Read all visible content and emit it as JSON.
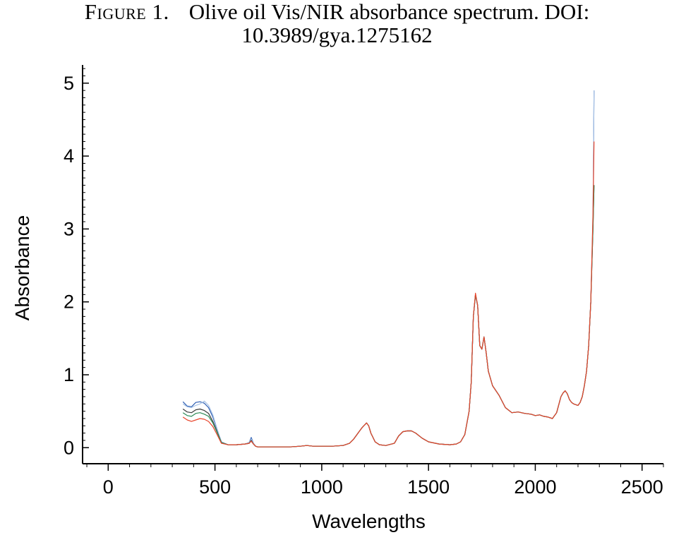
{
  "caption": {
    "label": "Figure 1.",
    "line1": "Olive oil Vis/NIR absorbance spectrum. DOI:",
    "line2": "10.3989/gya.1275162"
  },
  "chart_data": {
    "type": "line",
    "title": "",
    "xlabel": "Wavelengths",
    "ylabel": "Absorbance",
    "xlim": [
      -120,
      2600
    ],
    "ylim": [
      -0.22,
      5.25
    ],
    "xticks": [
      0,
      500,
      1000,
      1500,
      2000,
      2500
    ],
    "yticks": [
      0,
      1,
      2,
      3,
      4,
      5
    ],
    "grid": false,
    "legend": "none",
    "series": [
      {
        "color": "#2f5fb3",
        "x": [
          350,
          370,
          390,
          410,
          430,
          450,
          470,
          490,
          510,
          530,
          560,
          600,
          640,
          660,
          670,
          680,
          690,
          700,
          750,
          800,
          850,
          900,
          930,
          960,
          1000,
          1050,
          1100,
          1130,
          1150,
          1170,
          1190,
          1210,
          1220,
          1230,
          1250,
          1270,
          1300,
          1340,
          1360,
          1380,
          1400,
          1420,
          1440,
          1470,
          1500,
          1550,
          1600,
          1630,
          1650,
          1670,
          1690,
          1700,
          1710,
          1720,
          1730,
          1740,
          1750,
          1760,
          1770,
          1780,
          1800,
          1830,
          1860,
          1890,
          1920,
          1950,
          1980,
          2000,
          2020,
          2040,
          2060,
          2080,
          2100,
          2120,
          2130,
          2140,
          2150,
          2160,
          2170,
          2180,
          2200,
          2210,
          2220,
          2230,
          2240,
          2250,
          2260,
          2270,
          2275
        ],
        "y": [
          0.63,
          0.57,
          0.56,
          0.62,
          0.63,
          0.61,
          0.55,
          0.42,
          0.25,
          0.08,
          0.04,
          0.04,
          0.05,
          0.07,
          0.14,
          0.06,
          0.02,
          0.01,
          0.01,
          0.01,
          0.01,
          0.02,
          0.03,
          0.02,
          0.02,
          0.02,
          0.03,
          0.06,
          0.12,
          0.2,
          0.28,
          0.34,
          0.3,
          0.2,
          0.08,
          0.04,
          0.03,
          0.06,
          0.16,
          0.22,
          0.23,
          0.23,
          0.2,
          0.13,
          0.08,
          0.05,
          0.04,
          0.05,
          0.08,
          0.18,
          0.5,
          0.9,
          1.8,
          2.1,
          1.95,
          1.4,
          1.35,
          1.52,
          1.3,
          1.05,
          0.85,
          0.72,
          0.55,
          0.48,
          0.49,
          0.47,
          0.46,
          0.44,
          0.45,
          0.43,
          0.42,
          0.4,
          0.48,
          0.7,
          0.75,
          0.78,
          0.74,
          0.66,
          0.62,
          0.6,
          0.58,
          0.62,
          0.7,
          0.85,
          1.05,
          1.4,
          2.0,
          3.1,
          4.9
        ]
      },
      {
        "color": "#a9c4e6",
        "x": [
          350,
          370,
          390,
          410,
          430,
          450,
          470,
          490,
          510,
          530,
          560,
          600,
          640,
          660,
          670,
          680,
          690,
          700,
          750,
          800,
          850,
          900,
          930,
          960,
          1000,
          1050,
          1100,
          1130,
          1150,
          1170,
          1190,
          1210,
          1220,
          1230,
          1250,
          1270,
          1300,
          1340,
          1360,
          1380,
          1400,
          1420,
          1440,
          1470,
          1500,
          1550,
          1600,
          1630,
          1650,
          1670,
          1690,
          1700,
          1710,
          1720,
          1730,
          1740,
          1750,
          1760,
          1770,
          1780,
          1800,
          1830,
          1860,
          1890,
          1920,
          1950,
          1980,
          2000,
          2020,
          2040,
          2060,
          2080,
          2100,
          2120,
          2130,
          2140,
          2150,
          2160,
          2170,
          2180,
          2200,
          2210,
          2220,
          2230,
          2240,
          2250,
          2260,
          2270,
          2275
        ],
        "y": [
          0.6,
          0.56,
          0.55,
          0.58,
          0.6,
          0.64,
          0.58,
          0.45,
          0.26,
          0.08,
          0.04,
          0.04,
          0.05,
          0.07,
          0.12,
          0.06,
          0.02,
          0.01,
          0.01,
          0.01,
          0.01,
          0.02,
          0.03,
          0.02,
          0.02,
          0.02,
          0.03,
          0.06,
          0.12,
          0.2,
          0.28,
          0.34,
          0.3,
          0.2,
          0.08,
          0.04,
          0.03,
          0.06,
          0.16,
          0.22,
          0.23,
          0.23,
          0.2,
          0.13,
          0.08,
          0.05,
          0.04,
          0.05,
          0.08,
          0.18,
          0.5,
          0.9,
          1.8,
          2.1,
          1.95,
          1.4,
          1.35,
          1.52,
          1.3,
          1.05,
          0.85,
          0.72,
          0.55,
          0.48,
          0.49,
          0.47,
          0.46,
          0.44,
          0.45,
          0.43,
          0.42,
          0.4,
          0.48,
          0.7,
          0.75,
          0.78,
          0.74,
          0.66,
          0.62,
          0.6,
          0.58,
          0.62,
          0.7,
          0.85,
          1.05,
          1.4,
          2.0,
          3.2,
          4.9
        ]
      },
      {
        "color": "#3b3b3b",
        "x": [
          350,
          370,
          390,
          410,
          430,
          450,
          470,
          490,
          510,
          530,
          560,
          600,
          640,
          660,
          670,
          680,
          690,
          700,
          750,
          800,
          850,
          900,
          930,
          960,
          1000,
          1050,
          1100,
          1130,
          1150,
          1170,
          1190,
          1210,
          1220,
          1230,
          1250,
          1270,
          1300,
          1340,
          1360,
          1380,
          1400,
          1420,
          1440,
          1470,
          1500,
          1550,
          1600,
          1630,
          1650,
          1670,
          1690,
          1700,
          1710,
          1720,
          1730,
          1740,
          1750,
          1760,
          1770,
          1780,
          1800,
          1830,
          1860,
          1890,
          1920,
          1950,
          1980,
          2000,
          2020,
          2040,
          2060,
          2080,
          2100,
          2120,
          2130,
          2140,
          2150,
          2160,
          2170,
          2180,
          2200,
          2210,
          2220,
          2230,
          2240,
          2250,
          2260,
          2270,
          2275
        ],
        "y": [
          0.53,
          0.49,
          0.48,
          0.52,
          0.53,
          0.51,
          0.47,
          0.36,
          0.22,
          0.07,
          0.04,
          0.04,
          0.05,
          0.06,
          0.1,
          0.05,
          0.02,
          0.01,
          0.01,
          0.01,
          0.01,
          0.02,
          0.03,
          0.02,
          0.02,
          0.02,
          0.03,
          0.06,
          0.12,
          0.2,
          0.28,
          0.34,
          0.3,
          0.2,
          0.08,
          0.04,
          0.03,
          0.06,
          0.16,
          0.22,
          0.23,
          0.23,
          0.2,
          0.13,
          0.08,
          0.05,
          0.04,
          0.05,
          0.08,
          0.18,
          0.5,
          0.9,
          1.8,
          2.1,
          1.95,
          1.4,
          1.35,
          1.52,
          1.3,
          1.05,
          0.85,
          0.72,
          0.55,
          0.48,
          0.49,
          0.47,
          0.46,
          0.44,
          0.45,
          0.43,
          0.42,
          0.4,
          0.48,
          0.7,
          0.75,
          0.78,
          0.74,
          0.66,
          0.62,
          0.6,
          0.58,
          0.62,
          0.7,
          0.85,
          1.05,
          1.4,
          2.0,
          3.0,
          3.6
        ]
      },
      {
        "color": "#2e8b57",
        "x": [
          350,
          370,
          390,
          410,
          430,
          450,
          470,
          490,
          510,
          530,
          560,
          600,
          640,
          660,
          670,
          680,
          690,
          700,
          750,
          800,
          850,
          900,
          930,
          960,
          1000,
          1050,
          1100,
          1130,
          1150,
          1170,
          1190,
          1210,
          1220,
          1230,
          1250,
          1270,
          1300,
          1340,
          1360,
          1380,
          1400,
          1420,
          1440,
          1470,
          1500,
          1550,
          1600,
          1630,
          1650,
          1670,
          1690,
          1700,
          1710,
          1720,
          1730,
          1740,
          1750,
          1760,
          1770,
          1780,
          1800,
          1830,
          1860,
          1890,
          1920,
          1950,
          1980,
          2000,
          2020,
          2040,
          2060,
          2080,
          2100,
          2120,
          2130,
          2140,
          2150,
          2160,
          2170,
          2180,
          2200,
          2210,
          2220,
          2230,
          2240,
          2250,
          2260,
          2270,
          2275
        ],
        "y": [
          0.48,
          0.44,
          0.43,
          0.47,
          0.48,
          0.46,
          0.43,
          0.34,
          0.21,
          0.07,
          0.04,
          0.04,
          0.05,
          0.06,
          0.09,
          0.05,
          0.02,
          0.01,
          0.01,
          0.01,
          0.01,
          0.02,
          0.03,
          0.02,
          0.02,
          0.02,
          0.03,
          0.06,
          0.12,
          0.2,
          0.28,
          0.34,
          0.3,
          0.2,
          0.08,
          0.04,
          0.03,
          0.06,
          0.16,
          0.22,
          0.23,
          0.23,
          0.2,
          0.13,
          0.08,
          0.05,
          0.04,
          0.05,
          0.08,
          0.18,
          0.5,
          0.9,
          1.8,
          2.1,
          1.95,
          1.4,
          1.35,
          1.52,
          1.3,
          1.05,
          0.85,
          0.72,
          0.55,
          0.48,
          0.49,
          0.47,
          0.46,
          0.44,
          0.45,
          0.43,
          0.42,
          0.4,
          0.48,
          0.7,
          0.75,
          0.78,
          0.74,
          0.66,
          0.62,
          0.6,
          0.58,
          0.62,
          0.7,
          0.85,
          1.05,
          1.4,
          2.0,
          3.0,
          3.6
        ]
      },
      {
        "color": "#e8452c",
        "x": [
          350,
          370,
          390,
          410,
          430,
          450,
          470,
          490,
          510,
          530,
          560,
          600,
          640,
          660,
          670,
          680,
          690,
          700,
          750,
          800,
          850,
          900,
          930,
          960,
          1000,
          1050,
          1100,
          1130,
          1150,
          1170,
          1190,
          1210,
          1220,
          1230,
          1250,
          1270,
          1300,
          1340,
          1360,
          1380,
          1400,
          1420,
          1440,
          1470,
          1500,
          1550,
          1600,
          1630,
          1650,
          1670,
          1690,
          1700,
          1710,
          1720,
          1730,
          1740,
          1750,
          1760,
          1770,
          1780,
          1800,
          1830,
          1860,
          1890,
          1920,
          1950,
          1980,
          2000,
          2020,
          2040,
          2060,
          2080,
          2100,
          2120,
          2130,
          2140,
          2150,
          2160,
          2170,
          2180,
          2200,
          2210,
          2220,
          2230,
          2240,
          2250,
          2260,
          2270,
          2275
        ],
        "y": [
          0.42,
          0.38,
          0.36,
          0.38,
          0.4,
          0.39,
          0.36,
          0.29,
          0.18,
          0.06,
          0.04,
          0.04,
          0.05,
          0.06,
          0.09,
          0.05,
          0.02,
          0.01,
          0.01,
          0.01,
          0.01,
          0.02,
          0.03,
          0.02,
          0.02,
          0.02,
          0.03,
          0.06,
          0.12,
          0.2,
          0.28,
          0.34,
          0.3,
          0.2,
          0.08,
          0.04,
          0.03,
          0.06,
          0.16,
          0.22,
          0.23,
          0.23,
          0.2,
          0.13,
          0.08,
          0.05,
          0.04,
          0.05,
          0.08,
          0.18,
          0.5,
          0.9,
          1.8,
          2.12,
          1.95,
          1.4,
          1.35,
          1.52,
          1.3,
          1.05,
          0.85,
          0.72,
          0.55,
          0.48,
          0.49,
          0.47,
          0.46,
          0.44,
          0.45,
          0.43,
          0.42,
          0.4,
          0.48,
          0.7,
          0.75,
          0.78,
          0.74,
          0.66,
          0.62,
          0.6,
          0.58,
          0.62,
          0.7,
          0.85,
          1.05,
          1.4,
          2.0,
          3.2,
          4.2
        ]
      }
    ]
  }
}
